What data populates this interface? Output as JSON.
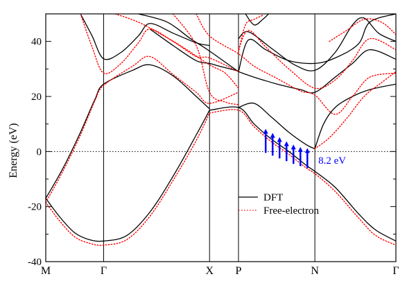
{
  "chart_data": {
    "type": "line",
    "title": "",
    "xlabel": "",
    "ylabel": "Energy (eV)",
    "ylim": [
      -40,
      50
    ],
    "y_ticks": [
      -40,
      -20,
      0,
      20,
      40
    ],
    "k_path": [
      "M",
      "Γ",
      "X",
      "P",
      "N",
      "Γ"
    ],
    "k_positions": [
      0.0,
      1.0,
      2.83,
      3.33,
      4.65,
      6.05
    ],
    "fermi_level": 0,
    "grid": false,
    "legend_position": "bottom-right",
    "series": [
      {
        "name": "DFT",
        "style": "solid",
        "color": "#000000",
        "bands": [
          [
            [
              0,
              -17
            ],
            [
              0.25,
              -24
            ],
            [
              0.5,
              -29.5
            ],
            [
              0.75,
              -32
            ],
            [
              1.0,
              -32.5
            ],
            [
              1.4,
              -30.5
            ],
            [
              1.8,
              -22
            ],
            [
              2.2,
              -9
            ],
            [
              2.6,
              6
            ],
            [
              2.83,
              15
            ]
          ],
          [
            [
              2.83,
              15
            ],
            [
              3.33,
              16
            ],
            [
              3.6,
              10
            ],
            [
              3.9,
              4.5
            ],
            [
              4.2,
              0
            ],
            [
              4.5,
              -5
            ],
            [
              4.65,
              -7.2
            ],
            [
              5.0,
              -13
            ],
            [
              5.4,
              -22.5
            ],
            [
              5.7,
              -28.5
            ],
            [
              6.05,
              -32.5
            ]
          ],
          [
            [
              3.33,
              16
            ],
            [
              3.6,
              17.5
            ],
            [
              3.9,
              12.5
            ],
            [
              4.2,
              7
            ],
            [
              4.5,
              2.5
            ],
            [
              4.65,
              1
            ]
          ],
          [
            [
              4.65,
              1
            ],
            [
              4.8,
              10
            ],
            [
              5.0,
              16
            ],
            [
              5.3,
              20
            ],
            [
              5.6,
              22.5
            ],
            [
              6.05,
              24.5
            ]
          ],
          [
            [
              0,
              -17
            ],
            [
              0.3,
              -6
            ],
            [
              0.6,
              7
            ],
            [
              0.85,
              19
            ],
            [
              1.0,
              24.5
            ],
            [
              1.5,
              29.5
            ],
            [
              1.8,
              31.5
            ],
            [
              2.2,
              27.5
            ],
            [
              2.6,
              20
            ],
            [
              2.83,
              15.5
            ]
          ],
          [
            [
              0.6,
              50
            ],
            [
              0.8,
              42
            ],
            [
              1.0,
              33.7
            ],
            [
              1.3,
              36
            ],
            [
              1.6,
              42
            ],
            [
              1.8,
              46.5
            ],
            [
              2.2,
              43
            ],
            [
              2.6,
              39.5
            ],
            [
              2.83,
              38.5
            ]
          ],
          [
            [
              1.8,
              44.5
            ],
            [
              2.2,
              38.5
            ],
            [
              2.6,
              33
            ],
            [
              2.83,
              32
            ],
            [
              3.0,
              31
            ],
            [
              3.33,
              29.2
            ]
          ],
          [
            [
              1.6,
              50
            ],
            [
              2.1,
              47
            ],
            [
              2.5,
              41
            ],
            [
              2.83,
              36.5
            ],
            [
              3.33,
              29
            ]
          ],
          [
            [
              3.33,
              29
            ],
            [
              3.6,
              27
            ],
            [
              4.0,
              24.5
            ],
            [
              4.4,
              22.5
            ],
            [
              4.65,
              21.5
            ],
            [
              5.0,
              27
            ],
            [
              5.3,
              32
            ],
            [
              5.6,
              37
            ],
            [
              6.05,
              33.5
            ]
          ],
          [
            [
              3.33,
              29
            ],
            [
              3.5,
              40.5
            ],
            [
              3.8,
              37
            ],
            [
              4.2,
              33
            ],
            [
              4.65,
              32
            ],
            [
              5.0,
              34
            ],
            [
              5.4,
              39
            ],
            [
              5.6,
              47
            ],
            [
              6.05,
              50
            ]
          ],
          [
            [
              3.33,
              41
            ],
            [
              3.5,
              43.5
            ],
            [
              3.9,
              37.5
            ],
            [
              4.3,
              31.5
            ],
            [
              4.65,
              29.5
            ],
            [
              5.0,
              36
            ],
            [
              5.3,
              46
            ],
            [
              5.5,
              48.5
            ],
            [
              5.75,
              43
            ],
            [
              6.05,
              40
            ]
          ],
          [
            [
              3.45,
              50
            ],
            [
              3.6,
              46
            ],
            [
              3.75,
              48
            ],
            [
              3.85,
              50
            ]
          ]
        ]
      },
      {
        "name": "Free-electron",
        "style": "dotted",
        "color": "#ff0000",
        "bands": [
          [
            [
              0,
              -18.5
            ],
            [
              0.25,
              -25.5
            ],
            [
              0.5,
              -31
            ],
            [
              0.75,
              -33.3
            ],
            [
              1.0,
              -34
            ],
            [
              1.4,
              -32
            ],
            [
              1.8,
              -23.5
            ],
            [
              2.2,
              -10.5
            ],
            [
              2.6,
              4
            ],
            [
              2.83,
              14
            ]
          ],
          [
            [
              2.83,
              14
            ],
            [
              3.33,
              15
            ],
            [
              3.6,
              9
            ],
            [
              3.9,
              3.5
            ],
            [
              4.2,
              -1
            ],
            [
              4.5,
              -6
            ],
            [
              4.65,
              -8
            ],
            [
              5.0,
              -14.5
            ],
            [
              5.4,
              -24
            ],
            [
              5.7,
              -30.5
            ],
            [
              6.05,
              -34
            ]
          ],
          [
            [
              0,
              -18.5
            ],
            [
              0.3,
              -7
            ],
            [
              0.6,
              6
            ],
            [
              0.85,
              18.5
            ],
            [
              1.0,
              24
            ],
            [
              1.5,
              31
            ],
            [
              1.8,
              34.5
            ],
            [
              2.2,
              28
            ],
            [
              2.6,
              21.5
            ],
            [
              2.83,
              17.5
            ],
            [
              3.33,
              21.5
            ]
          ],
          [
            [
              0.6,
              50
            ],
            [
              0.8,
              38
            ],
            [
              1.0,
              28.5
            ],
            [
              1.3,
              32
            ],
            [
              1.6,
              39.5
            ],
            [
              1.8,
              44.5
            ],
            [
              2.2,
              40
            ],
            [
              2.6,
              34.5
            ],
            [
              2.83,
              34
            ],
            [
              3.33,
              29
            ]
          ],
          [
            [
              1.2,
              50
            ],
            [
              1.6,
              47
            ],
            [
              2.0,
              42.5
            ],
            [
              2.4,
              37.5
            ],
            [
              2.83,
              31.5
            ],
            [
              3.1,
              28.5
            ],
            [
              3.33,
              23
            ]
          ],
          [
            [
              2.2,
              50
            ],
            [
              2.6,
              38.5
            ],
            [
              2.83,
              21.5
            ],
            [
              3.1,
              18
            ],
            [
              3.33,
              17
            ]
          ],
          [
            [
              2.6,
              50
            ],
            [
              2.83,
              42
            ],
            [
              3.33,
              35.5
            ],
            [
              3.6,
              31
            ],
            [
              4.0,
              26.5
            ],
            [
              4.4,
              22
            ],
            [
              4.65,
              20.5
            ],
            [
              5.0,
              13.5
            ],
            [
              5.3,
              20
            ],
            [
              5.6,
              27
            ],
            [
              6.05,
              28.5
            ]
          ],
          [
            [
              3.33,
              37
            ],
            [
              3.5,
              44
            ],
            [
              3.8,
              38
            ],
            [
              4.2,
              30
            ],
            [
              4.65,
              23
            ],
            [
              5.0,
              26
            ],
            [
              5.3,
              33
            ],
            [
              5.6,
              41
            ],
            [
              6.05,
              37
            ]
          ],
          [
            [
              3.33,
              36
            ],
            [
              3.45,
              46
            ],
            [
              3.6,
              48
            ],
            [
              3.75,
              49.5
            ]
          ],
          [
            [
              4.65,
              1
            ],
            [
              4.9,
              5
            ],
            [
              5.2,
              12
            ],
            [
              5.5,
              20
            ],
            [
              5.8,
              25
            ],
            [
              6.05,
              29
            ]
          ],
          [
            [
              4.9,
              40
            ],
            [
              5.2,
              44
            ],
            [
              5.5,
              48
            ],
            [
              5.8,
              47
            ],
            [
              6.05,
              42.5
            ]
          ]
        ]
      }
    ],
    "annotation": {
      "text": "8.2 eV",
      "color": "#0000ff",
      "arrows": [
        {
          "k": 3.8,
          "from": -0.5,
          "to": 8.0
        },
        {
          "k": 3.92,
          "from": -1.5,
          "to": 6.5
        },
        {
          "k": 4.04,
          "from": -2.5,
          "to": 5.0
        },
        {
          "k": 4.16,
          "from": -3.5,
          "to": 3.5
        },
        {
          "k": 4.28,
          "from": -4.5,
          "to": 2.3
        },
        {
          "k": 4.4,
          "from": -5.3,
          "to": 1.4
        },
        {
          "k": 4.52,
          "from": -6.0,
          "to": 1.0
        }
      ]
    }
  }
}
